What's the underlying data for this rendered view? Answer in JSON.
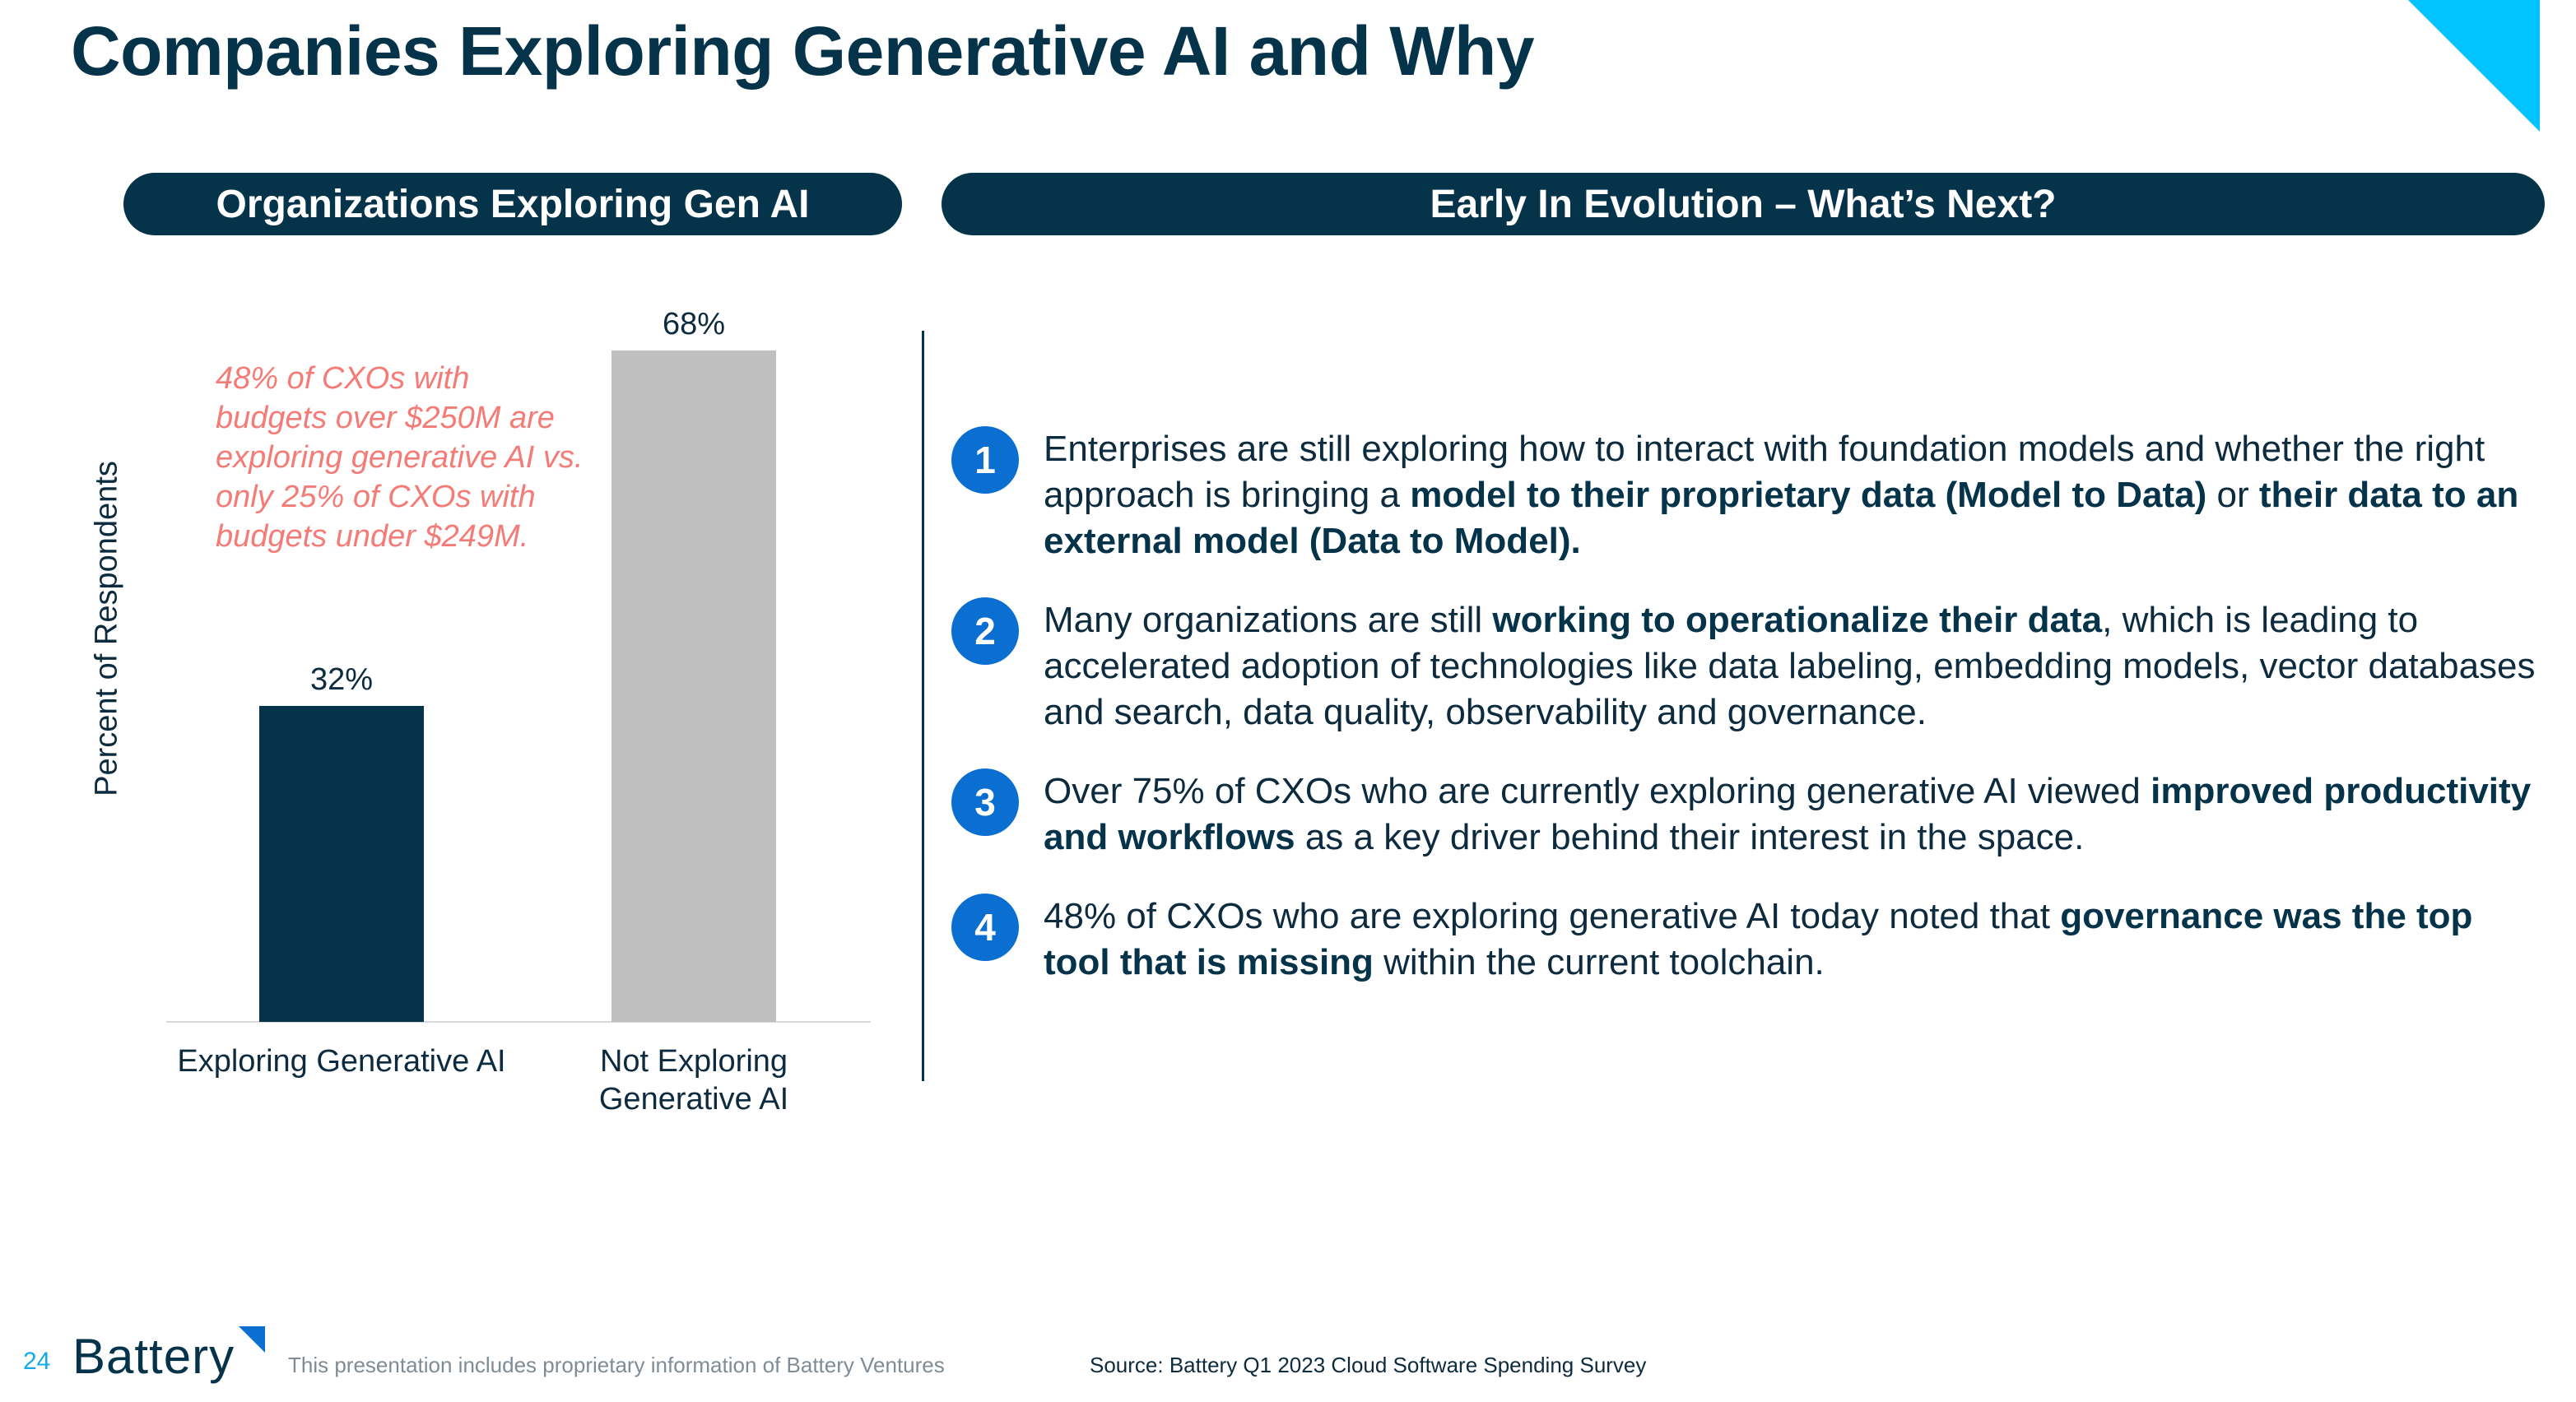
{
  "title": "Companies Exploring Generative AI and Why",
  "left_header": "Organizations Exploring Gen AI",
  "right_header": "Early In Evolution – What’s Next?",
  "annotation": "48% of CXOs with budgets over $250M are exploring generative AI vs. only 25% of CXOs with budgets under $249M.",
  "colors": {
    "navy": "#04334a",
    "bar_exploring": "#04334a",
    "bar_not_exploring": "#bfbfbf",
    "accent_blue": "#0a6fd0",
    "cyan": "#00c3ff",
    "annotation": "#f47b76"
  },
  "chart_data": {
    "type": "bar",
    "categories": [
      "Exploring Generative AI",
      "Not Exploring Generative AI"
    ],
    "values": [
      32,
      68
    ],
    "data_labels": [
      "32%",
      "68%"
    ],
    "ylabel": "Percent of Respondents",
    "ylim": [
      0,
      75
    ],
    "grid": false,
    "legend": "none"
  },
  "items": [
    {
      "number": "1",
      "segments": [
        {
          "text": "Enterprises are still exploring how to interact with foundation models and whether the right approach is bringing a ",
          "bold": false
        },
        {
          "text": "model to their proprietary data (Model to Data)",
          "bold": true
        },
        {
          "text": " or ",
          "bold": false
        },
        {
          "text": "their data to an external model (Data to Model).",
          "bold": true
        }
      ]
    },
    {
      "number": "2",
      "segments": [
        {
          "text": "Many organizations are still ",
          "bold": false
        },
        {
          "text": "working to operationalize their data",
          "bold": true
        },
        {
          "text": ", which is leading to accelerated adoption of technologies like data labeling, embedding models, vector databases and search, data quality, observability and governance.",
          "bold": false
        }
      ]
    },
    {
      "number": "3",
      "segments": [
        {
          "text": "Over 75% of CXOs who are currently exploring generative AI viewed ",
          "bold": false
        },
        {
          "text": "improved productivity and workflows",
          "bold": true
        },
        {
          "text": " as a key driver behind their interest in the space.",
          "bold": false
        }
      ]
    },
    {
      "number": "4",
      "segments": [
        {
          "text": "48% of CXOs who are exploring generative AI today noted that ",
          "bold": false
        },
        {
          "text": "governance was the top tool that is missing",
          "bold": true
        },
        {
          "text": " within the current toolchain.",
          "bold": false
        }
      ]
    }
  ],
  "footer": {
    "page_number": "24",
    "logo_text": "Battery",
    "note": "This presentation includes proprietary information of Battery Ventures",
    "source": "Source: Battery Q1 2023 Cloud Software Spending Survey"
  }
}
